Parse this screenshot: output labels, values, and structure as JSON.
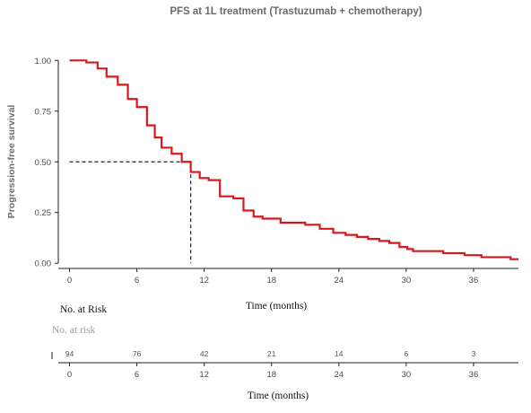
{
  "chart_data": {
    "type": "line",
    "title": "PFS at 1L treatment (Trastuzumab + chemotherapy)",
    "ylabel": "Progression-free survival",
    "xlabel": "Time (months)",
    "xlim": [
      -1,
      40
    ],
    "ylim": [
      -0.03,
      1.05
    ],
    "xticks": [
      0,
      6,
      12,
      18,
      24,
      30,
      36
    ],
    "yticks": [
      0,
      0.25,
      0.5,
      0.75,
      1.0
    ],
    "ytick_labels": [
      "0.00",
      "0.25",
      "0.50",
      "0.75",
      "1.00"
    ],
    "series": [
      {
        "color": "#d7191c",
        "step": true,
        "x": [
          0,
          1.5,
          2.5,
          3.3,
          4.3,
          5.2,
          6,
          6.9,
          7.6,
          8.2,
          9.1,
          10,
          10.8,
          11.6,
          12.4,
          13.4,
          14.6,
          15.5,
          16.4,
          17.2,
          18.8,
          19.6,
          21,
          22.3,
          23.5,
          24.6,
          25.6,
          26.6,
          27.6,
          28.5,
          29.4,
          30.1,
          30.6,
          32,
          33.3,
          34,
          35.2,
          36.7,
          37.5,
          38.6,
          39.3,
          40
        ],
        "y": [
          1.0,
          0.99,
          0.96,
          0.92,
          0.88,
          0.81,
          0.77,
          0.68,
          0.62,
          0.57,
          0.54,
          0.5,
          0.45,
          0.42,
          0.41,
          0.33,
          0.32,
          0.26,
          0.23,
          0.22,
          0.2,
          0.2,
          0.19,
          0.17,
          0.15,
          0.14,
          0.13,
          0.12,
          0.11,
          0.1,
          0.08,
          0.07,
          0.06,
          0.06,
          0.05,
          0.05,
          0.04,
          0.03,
          0.03,
          0.03,
          0.02,
          0.02
        ]
      }
    ],
    "median": {
      "time": 10.8,
      "survival": 0.5
    },
    "risk_table": {
      "label_primary": "No. at Risk",
      "label_secondary": "No. at risk",
      "times": [
        0,
        6,
        12,
        18,
        24,
        30,
        36
      ],
      "numbers": [
        "94",
        "76",
        "42",
        "21",
        "14",
        "6",
        "3"
      ],
      "xlabel": "Time (months)"
    }
  }
}
